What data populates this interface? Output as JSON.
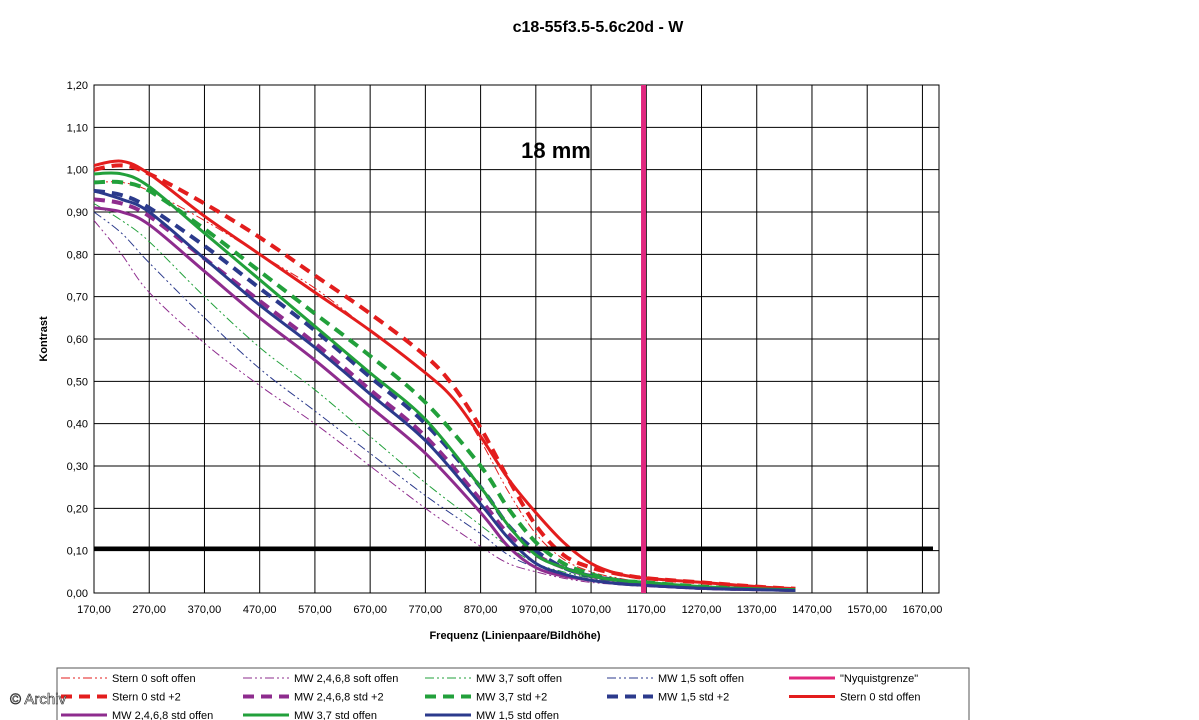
{
  "watermark": "© Archiv",
  "chart_data": {
    "type": "line",
    "title": "c18-55f3.5-5.6c20d - W",
    "annotation": "18 mm",
    "xlabel": "Frequenz (Linienpaare/Bildhöhe)",
    "ylabel": "Kontrast",
    "xlim": [
      170,
      1700
    ],
    "ylim": [
      0,
      1.2
    ],
    "x_ticks": [
      "170,00",
      "270,00",
      "370,00",
      "470,00",
      "570,00",
      "670,00",
      "770,00",
      "870,00",
      "970,00",
      "1070,00",
      "1170,00",
      "1270,00",
      "1370,00",
      "1470,00",
      "1570,00",
      "1670,00"
    ],
    "y_ticks": [
      "0,00",
      "0,10",
      "0,20",
      "0,30",
      "0,40",
      "0,50",
      "0,60",
      "0,70",
      "0,80",
      "0,90",
      "1,00",
      "1,10",
      "1,20"
    ],
    "grid": true,
    "legend_position": "bottom",
    "reference_lines": [
      {
        "orientation": "horizontal",
        "value": 0.105,
        "color": "#000000"
      },
      {
        "orientation": "vertical",
        "value": 1165,
        "color": "#e0287f"
      }
    ],
    "series": [
      {
        "name": "Stern 0 soft offen",
        "color": "#e31d1d",
        "style": "dashdotdot",
        "width": 1,
        "x": [
          170,
          220,
          270,
          370,
          470,
          570,
          670,
          770,
          820,
          870,
          920,
          970,
          1020,
          1070,
          1120,
          1170,
          1270,
          1370,
          1440
        ],
        "y": [
          0.97,
          0.97,
          0.95,
          0.88,
          0.8,
          0.72,
          0.62,
          0.52,
          0.46,
          0.36,
          0.24,
          0.14,
          0.08,
          0.05,
          0.035,
          0.025,
          0.015,
          0.01,
          0.008
        ]
      },
      {
        "name": "MW 2,4,6,8 soft offen",
        "color": "#8e2c8e",
        "style": "dashdotdot",
        "width": 1,
        "x": [
          170,
          220,
          270,
          370,
          470,
          570,
          670,
          770,
          870,
          920,
          970,
          1020,
          1070,
          1120,
          1170,
          1270,
          1370,
          1440
        ],
        "y": [
          0.88,
          0.8,
          0.71,
          0.59,
          0.49,
          0.4,
          0.3,
          0.2,
          0.11,
          0.07,
          0.05,
          0.035,
          0.025,
          0.02,
          0.015,
          0.01,
          0.008,
          0.006
        ]
      },
      {
        "name": "MW 3,7 soft offen",
        "color": "#22a03b",
        "style": "dashdotdot",
        "width": 1,
        "x": [
          170,
          220,
          270,
          370,
          470,
          570,
          670,
          770,
          870,
          920,
          970,
          1020,
          1070,
          1120,
          1170,
          1270,
          1370,
          1440
        ],
        "y": [
          0.92,
          0.88,
          0.83,
          0.7,
          0.58,
          0.48,
          0.37,
          0.26,
          0.16,
          0.11,
          0.07,
          0.05,
          0.035,
          0.025,
          0.02,
          0.012,
          0.009,
          0.007
        ]
      },
      {
        "name": "MW 1,5 soft offen",
        "color": "#2b3a8c",
        "style": "dashdotdot",
        "width": 1,
        "x": [
          170,
          220,
          270,
          370,
          470,
          570,
          670,
          770,
          870,
          920,
          970,
          1020,
          1070,
          1120,
          1170,
          1270,
          1370,
          1440
        ],
        "y": [
          0.9,
          0.85,
          0.78,
          0.65,
          0.53,
          0.43,
          0.33,
          0.23,
          0.14,
          0.09,
          0.06,
          0.04,
          0.03,
          0.022,
          0.018,
          0.011,
          0.008,
          0.006
        ]
      },
      {
        "name": "\"Nyquistgrenze\"",
        "color": "#e0287f",
        "style": "nyquist",
        "width": 4
      },
      {
        "name": "Stern 0 std +2",
        "color": "#e31d1d",
        "style": "dash",
        "width": 4,
        "x": [
          170,
          220,
          270,
          370,
          470,
          570,
          670,
          770,
          820,
          870,
          920,
          970,
          1020,
          1070,
          1120,
          1170,
          1270,
          1370,
          1440
        ],
        "y": [
          1.0,
          1.01,
          0.99,
          0.92,
          0.84,
          0.75,
          0.66,
          0.56,
          0.49,
          0.39,
          0.27,
          0.16,
          0.09,
          0.06,
          0.045,
          0.035,
          0.025,
          0.015,
          0.01
        ]
      },
      {
        "name": "MW 2,4,6,8 std +2",
        "color": "#8e2c8e",
        "style": "dash",
        "width": 4,
        "x": [
          170,
          220,
          270,
          370,
          470,
          570,
          670,
          770,
          870,
          920,
          970,
          1020,
          1070,
          1120,
          1170,
          1270,
          1370,
          1440
        ],
        "y": [
          0.93,
          0.92,
          0.89,
          0.79,
          0.69,
          0.59,
          0.48,
          0.37,
          0.22,
          0.14,
          0.09,
          0.06,
          0.04,
          0.03,
          0.02,
          0.012,
          0.009,
          0.007
        ]
      },
      {
        "name": "MW 3,7 std +2",
        "color": "#22a03b",
        "style": "dash",
        "width": 4,
        "x": [
          170,
          220,
          270,
          370,
          470,
          570,
          670,
          770,
          870,
          920,
          970,
          1020,
          1070,
          1120,
          1170,
          1270,
          1370,
          1440
        ],
        "y": [
          0.97,
          0.97,
          0.95,
          0.86,
          0.76,
          0.66,
          0.56,
          0.45,
          0.3,
          0.2,
          0.12,
          0.07,
          0.045,
          0.03,
          0.025,
          0.015,
          0.01,
          0.008
        ]
      },
      {
        "name": "MW 1,5 std +2",
        "color": "#2b3a8c",
        "style": "dash",
        "width": 4,
        "x": [
          170,
          220,
          270,
          370,
          470,
          570,
          670,
          770,
          870,
          920,
          970,
          1020,
          1070,
          1120,
          1170,
          1270,
          1370,
          1440
        ],
        "y": [
          0.95,
          0.94,
          0.91,
          0.82,
          0.72,
          0.62,
          0.51,
          0.4,
          0.25,
          0.16,
          0.1,
          0.06,
          0.04,
          0.03,
          0.02,
          0.012,
          0.009,
          0.007
        ]
      },
      {
        "name": "Stern 0 std offen",
        "color": "#e31d1d",
        "style": "solid",
        "width": 3,
        "x": [
          170,
          220,
          270,
          370,
          470,
          570,
          670,
          770,
          820,
          870,
          920,
          970,
          1020,
          1070,
          1120,
          1170,
          1270,
          1370,
          1440
        ],
        "y": [
          1.01,
          1.02,
          0.99,
          0.89,
          0.8,
          0.71,
          0.62,
          0.52,
          0.46,
          0.37,
          0.27,
          0.19,
          0.12,
          0.07,
          0.045,
          0.035,
          0.025,
          0.015,
          0.01
        ]
      },
      {
        "name": "MW 2,4,6,8 std offen",
        "color": "#8e2c8e",
        "style": "solid",
        "width": 3,
        "x": [
          170,
          220,
          270,
          370,
          470,
          570,
          670,
          770,
          870,
          920,
          970,
          1020,
          1070,
          1120,
          1170,
          1270,
          1370,
          1440
        ],
        "y": [
          0.91,
          0.9,
          0.87,
          0.76,
          0.65,
          0.55,
          0.44,
          0.33,
          0.19,
          0.11,
          0.06,
          0.04,
          0.03,
          0.022,
          0.018,
          0.011,
          0.008,
          0.006
        ]
      },
      {
        "name": "MW 3,7 std offen",
        "color": "#22a03b",
        "style": "solid",
        "width": 3,
        "x": [
          170,
          220,
          270,
          370,
          470,
          570,
          670,
          770,
          870,
          920,
          970,
          1020,
          1070,
          1120,
          1170,
          1270,
          1370,
          1440
        ],
        "y": [
          0.99,
          0.99,
          0.96,
          0.85,
          0.74,
          0.63,
          0.52,
          0.41,
          0.25,
          0.16,
          0.09,
          0.06,
          0.04,
          0.03,
          0.025,
          0.015,
          0.01,
          0.008
        ]
      },
      {
        "name": "MW 1,5 std offen",
        "color": "#2b3a8c",
        "style": "solid",
        "width": 3,
        "x": [
          170,
          220,
          270,
          370,
          470,
          570,
          670,
          770,
          870,
          920,
          970,
          1020,
          1070,
          1120,
          1170,
          1270,
          1370,
          1440
        ],
        "y": [
          0.95,
          0.93,
          0.9,
          0.79,
          0.68,
          0.58,
          0.47,
          0.36,
          0.21,
          0.13,
          0.07,
          0.045,
          0.03,
          0.022,
          0.018,
          0.011,
          0.008,
          0.006
        ]
      }
    ]
  }
}
